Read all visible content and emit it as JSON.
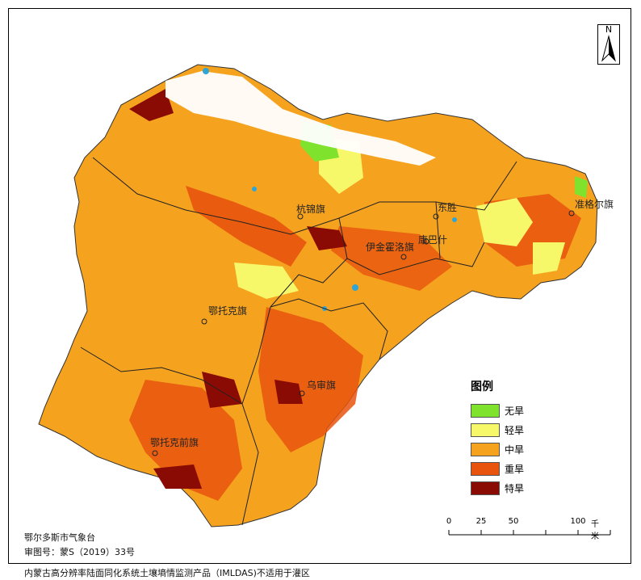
{
  "map": {
    "places": [
      {
        "id": "hangjin",
        "name": "杭锦旗"
      },
      {
        "id": "dongsheng",
        "name": "东胜"
      },
      {
        "id": "zhungeer",
        "name": "准格尔旗"
      },
      {
        "id": "kangbashi",
        "name": "康巴什"
      },
      {
        "id": "yijinhuoluo",
        "name": "伊金霍洛旗"
      },
      {
        "id": "etuokeqi",
        "name": "鄂托克旗"
      },
      {
        "id": "wushen",
        "name": "乌审旗"
      },
      {
        "id": "etuokeqianqi",
        "name": "鄂托克前旗"
      }
    ],
    "colors": {
      "none": "#7fe32e",
      "light": "#f7f76a",
      "medium": "#f5a31f",
      "heavy": "#e8540e",
      "extreme": "#8a0a04",
      "water": "#2fa4d6"
    }
  },
  "legend": {
    "title": "图例",
    "items": [
      {
        "label": "无旱",
        "color": "#7fe32e"
      },
      {
        "label": "轻旱",
        "color": "#f7f76a"
      },
      {
        "label": "中旱",
        "color": "#f5a31f"
      },
      {
        "label": "重旱",
        "color": "#e8540e"
      },
      {
        "label": "特旱",
        "color": "#8a0a04"
      }
    ]
  },
  "scale": {
    "ticks": [
      "0",
      "25",
      "50",
      "100"
    ],
    "unit": "千米"
  },
  "north": {
    "label": "N"
  },
  "footer": {
    "agency": "鄂尔多斯市气象台",
    "approval": "审图号：蒙S（2019）33号",
    "note": "内蒙古高分辨率陆面同化系统土壤墒情监测产品（IMLDAS)不适用于灌区"
  }
}
